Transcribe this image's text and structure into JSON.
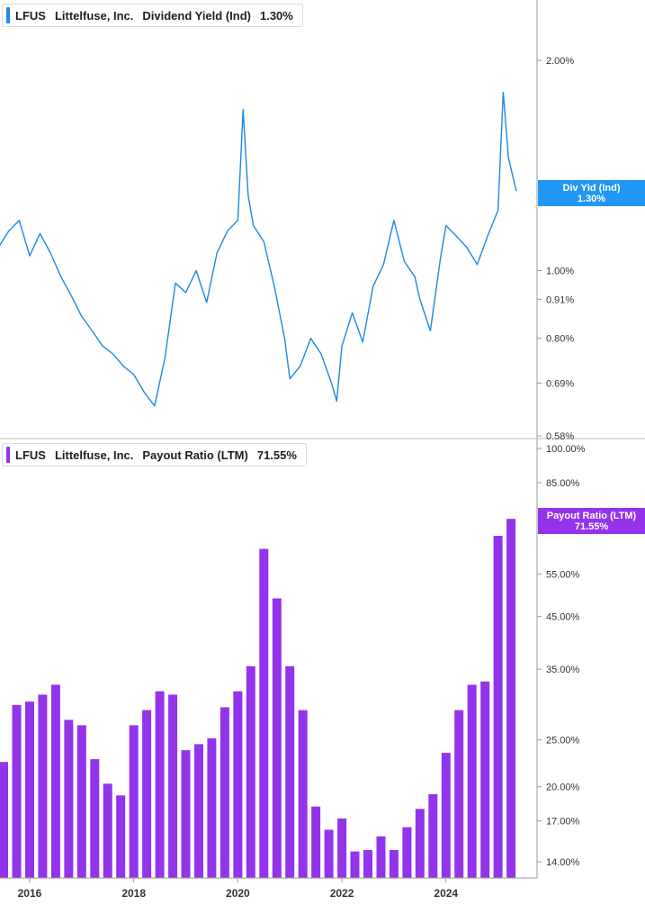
{
  "colors": {
    "yield_line": "#1e88e5",
    "payout_bar": "#9333ea",
    "yield_flag_bg": "#2196f3",
    "payout_flag_bg": "#9333ea",
    "axis": "#999999"
  },
  "top_legend": {
    "ticker": "LFUS",
    "company": "Littelfuse, Inc.",
    "metric": "Dividend Yield (Ind)",
    "value": "1.30%"
  },
  "bottom_legend": {
    "ticker": "LFUS",
    "company": "Littelfuse, Inc.",
    "metric": "Payout Ratio (LTM)",
    "value": "71.55%"
  },
  "yield_flag": {
    "label": "Div Yld (Ind)",
    "value": "1.30%"
  },
  "payout_flag": {
    "label": "Payout Ratio (LTM)",
    "value": "71.55%"
  },
  "chart_data": [
    {
      "type": "line",
      "scale": "log",
      "series": [
        {
          "name": "Dividend Yield (Ind)",
          "x": [
            2015.4,
            2015.6,
            2015.8,
            2016.0,
            2016.2,
            2016.4,
            2016.6,
            2016.8,
            2017.0,
            2017.2,
            2017.4,
            2017.6,
            2017.8,
            2018.0,
            2018.2,
            2018.4,
            2018.6,
            2018.8,
            2019.0,
            2019.2,
            2019.4,
            2019.6,
            2019.8,
            2020.0,
            2020.1,
            2020.2,
            2020.3,
            2020.5,
            2020.7,
            2020.9,
            2021.0,
            2021.2,
            2021.4,
            2021.6,
            2021.8,
            2021.9,
            2022.0,
            2022.2,
            2022.4,
            2022.6,
            2022.8,
            2023.0,
            2023.2,
            2023.4,
            2023.5,
            2023.7,
            2023.9,
            2024.0,
            2024.2,
            2024.4,
            2024.6,
            2024.8,
            2025.0,
            2025.1,
            2025.2,
            2025.35
          ],
          "y": [
            1.08,
            1.14,
            1.18,
            1.05,
            1.13,
            1.06,
            0.98,
            0.92,
            0.86,
            0.82,
            0.78,
            0.76,
            0.73,
            0.71,
            0.67,
            0.64,
            0.75,
            0.96,
            0.93,
            1.0,
            0.9,
            1.06,
            1.14,
            1.18,
            1.7,
            1.28,
            1.16,
            1.1,
            0.95,
            0.8,
            0.7,
            0.73,
            0.8,
            0.76,
            0.69,
            0.65,
            0.78,
            0.87,
            0.79,
            0.95,
            1.02,
            1.18,
            1.03,
            0.98,
            0.91,
            0.82,
            1.05,
            1.16,
            1.12,
            1.08,
            1.02,
            1.12,
            1.22,
            1.8,
            1.45,
            1.3
          ]
        }
      ],
      "y_ticks": [
        "2.00%",
        "1.00%",
        "0.91%",
        "0.80%",
        "0.69%",
        "0.58%"
      ],
      "y_tick_values": [
        2.0,
        1.0,
        0.91,
        0.8,
        0.69,
        0.58
      ],
      "ylim": [
        0.575,
        2.2
      ]
    },
    {
      "type": "bar",
      "scale": "log",
      "series": [
        {
          "name": "Payout Ratio (LTM)",
          "x": [
            2015.5,
            2015.75,
            2016.0,
            2016.25,
            2016.5,
            2016.75,
            2017.0,
            2017.25,
            2017.5,
            2017.75,
            2018.0,
            2018.25,
            2018.5,
            2018.75,
            2019.0,
            2019.25,
            2019.5,
            2019.75,
            2020.0,
            2020.25,
            2020.5,
            2020.75,
            2021.0,
            2021.25,
            2021.5,
            2021.75,
            2022.0,
            2022.25,
            2022.5,
            2022.75,
            2023.0,
            2023.25,
            2023.5,
            2023.75,
            2024.0,
            2024.25,
            2024.5,
            2024.75,
            2025.0,
            2025.25
          ],
          "values": [
            22.5,
            29.5,
            30.0,
            31.0,
            32.5,
            27.5,
            26.8,
            22.8,
            20.3,
            19.2,
            26.8,
            28.8,
            31.5,
            31.0,
            23.8,
            24.5,
            25.2,
            29.2,
            31.5,
            35.5,
            62.0,
            49.0,
            35.5,
            28.8,
            18.2,
            16.3,
            17.2,
            14.7,
            14.8,
            15.8,
            14.8,
            16.5,
            18.0,
            19.3,
            23.5,
            28.8,
            32.5,
            33.0,
            66.0,
            71.55
          ]
        }
      ],
      "y_ticks": [
        "100.00%",
        "85.00%",
        "55.00%",
        "45.00%",
        "35.00%",
        "25.00%",
        "20.00%",
        "17.00%",
        "14.00%"
      ],
      "y_tick_values": [
        100,
        85,
        55,
        45,
        35,
        25,
        20,
        17,
        14
      ],
      "ylim": [
        13.2,
        101
      ]
    }
  ],
  "x_axis": {
    "labels": [
      "2016",
      "2018",
      "2020",
      "2022",
      "2024"
    ],
    "values": [
      2016,
      2018,
      2020,
      2022,
      2024
    ],
    "range": [
      2015.43,
      2025.75
    ]
  }
}
